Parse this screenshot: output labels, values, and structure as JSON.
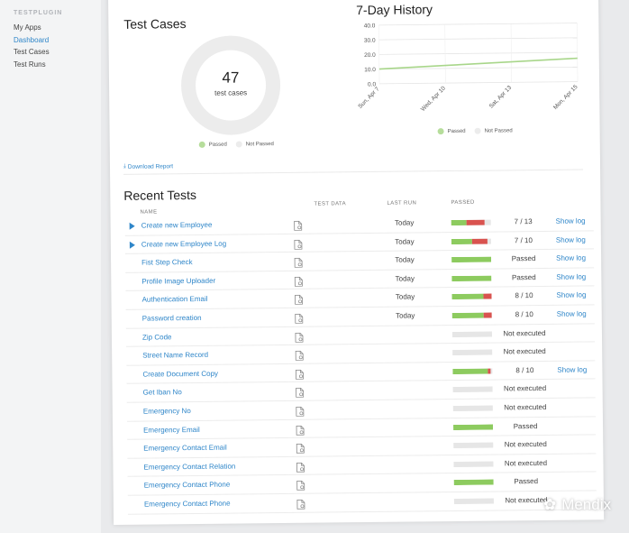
{
  "sidebar": {
    "brand": "TESTPLUGIN",
    "items": [
      {
        "label": "My Apps",
        "active": false
      },
      {
        "label": "Dashboard",
        "active": true
      },
      {
        "label": "Test Cases",
        "active": false
      },
      {
        "label": "Test Runs",
        "active": false
      }
    ]
  },
  "test_cases": {
    "title": "Test Cases",
    "count": "47",
    "count_label": "test cases",
    "legend_passed": "Passed",
    "legend_not_passed": "Not Passed"
  },
  "history": {
    "title": "7-Day History",
    "legend_passed": "Passed",
    "legend_not_passed": "Not Passed"
  },
  "download_label": "Download Report",
  "recent": {
    "title": "Recent Tests",
    "headers": {
      "name": "NAME",
      "test_data": "TEST DATA",
      "last_run": "LAST RUN",
      "passed": "PASSED"
    },
    "rows": [
      {
        "name": "Create new Employee",
        "has_arrow": true,
        "last_run": "Today",
        "pass": 0.38,
        "fail": 0.47,
        "result": "7 / 13",
        "log": "Show log"
      },
      {
        "name": "Create new Employee Log",
        "has_arrow": true,
        "last_run": "Today",
        "pass": 0.52,
        "fail": 0.38,
        "result": "7 / 10",
        "log": "Show log"
      },
      {
        "name": "Fist Step Check",
        "has_arrow": false,
        "last_run": "Today",
        "pass": 1.0,
        "fail": 0,
        "result": "Passed",
        "log": "Show log"
      },
      {
        "name": "Profile Image Uploader",
        "has_arrow": false,
        "last_run": "Today",
        "pass": 1.0,
        "fail": 0,
        "result": "Passed",
        "log": "Show log"
      },
      {
        "name": "Authentication Email",
        "has_arrow": false,
        "last_run": "Today",
        "pass": 0.8,
        "fail": 0.2,
        "result": "8 / 10",
        "log": "Show log"
      },
      {
        "name": "Password creation",
        "has_arrow": false,
        "last_run": "Today",
        "pass": 0.8,
        "fail": 0.2,
        "result": "8 / 10",
        "log": "Show log"
      },
      {
        "name": "Zip Code",
        "has_arrow": false,
        "last_run": "",
        "pass": 0,
        "fail": 0,
        "result": "Not executed",
        "log": ""
      },
      {
        "name": "Street Name Record",
        "has_arrow": false,
        "last_run": "",
        "pass": 0,
        "fail": 0,
        "result": "Not executed",
        "log": ""
      },
      {
        "name": "Create Document Copy",
        "has_arrow": false,
        "last_run": "",
        "pass": 0.88,
        "fail": 0.08,
        "result": "8 / 10",
        "log": "Show log"
      },
      {
        "name": "Get Iban No",
        "has_arrow": false,
        "last_run": "",
        "pass": 0,
        "fail": 0,
        "result": "Not executed",
        "log": ""
      },
      {
        "name": "Emergency No",
        "has_arrow": false,
        "last_run": "",
        "pass": 0,
        "fail": 0,
        "result": "Not executed",
        "log": ""
      },
      {
        "name": "Emergency Email",
        "has_arrow": false,
        "last_run": "",
        "pass": 1.0,
        "fail": 0,
        "result": "Passed",
        "log": ""
      },
      {
        "name": "Emergency Contact Email",
        "has_arrow": false,
        "last_run": "",
        "pass": 0,
        "fail": 0,
        "result": "Not executed",
        "log": ""
      },
      {
        "name": "Emergency Contact Relation",
        "has_arrow": false,
        "last_run": "",
        "pass": 0,
        "fail": 0,
        "result": "Not executed",
        "log": ""
      },
      {
        "name": "Emergency Contact Phone",
        "has_arrow": false,
        "last_run": "",
        "pass": 1.0,
        "fail": 0,
        "result": "Passed",
        "log": ""
      },
      {
        "name": "Emergency Contact Phone",
        "has_arrow": false,
        "last_run": "",
        "pass": 0,
        "fail": 0,
        "result": "Not executed",
        "log": ""
      }
    ]
  },
  "watermark": "Mendix",
  "colors": {
    "accent": "#2f86c9",
    "passed": "#8dcb5f",
    "failed": "#d9534f",
    "empty": "#e6e6e6"
  },
  "chart_data": {
    "type": "line",
    "title": "7-Day History",
    "x": [
      "Sun, Apr 7",
      "Wed, Apr 10",
      "Sat, Apr 13",
      "Mon, Apr 15"
    ],
    "yticks": [
      "40.0",
      "30.0",
      "20.0",
      "10.0",
      "0.0"
    ],
    "ylim": [
      0,
      40
    ],
    "series": [
      {
        "name": "Passed",
        "color": "#a8d68a",
        "values": [
          10,
          12,
          14,
          16
        ]
      }
    ],
    "legend": [
      "Passed",
      "Not Passed"
    ],
    "grid": true
  }
}
